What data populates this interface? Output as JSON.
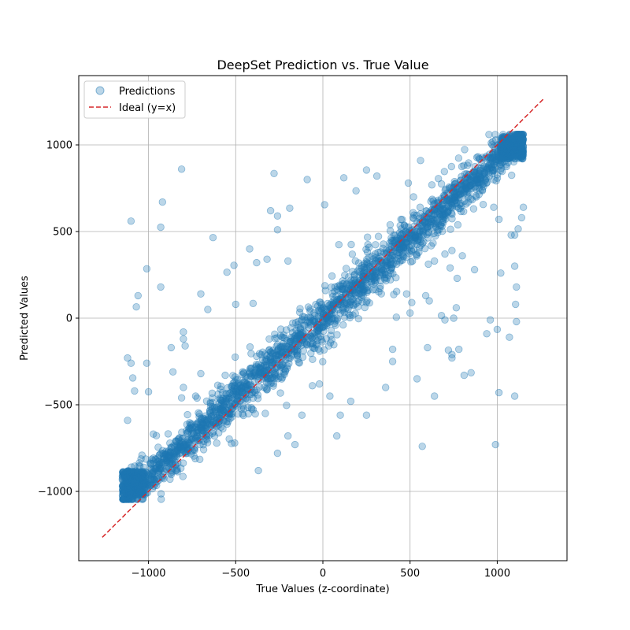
{
  "chart_data": {
    "type": "scatter",
    "title": "DeepSet Prediction vs. True Value",
    "xlabel": "True Values (z-coordinate)",
    "ylabel": "Predicted Values",
    "xlim": [
      -1400,
      1400
    ],
    "ylim": [
      -1400,
      1400
    ],
    "xticks": [
      -1000,
      -500,
      0,
      500,
      1000
    ],
    "yticks": [
      -1000,
      -500,
      0,
      500,
      1000
    ],
    "xtick_labels": [
      "−1000",
      "−500",
      "0",
      "500",
      "1000"
    ],
    "ytick_labels": [
      "−1000",
      "−500",
      "0",
      "500",
      "1000"
    ],
    "grid": true,
    "legend_position": "top-left",
    "series": [
      {
        "name": "Predictions",
        "kind": "scatter",
        "color": "#1f77b4",
        "alpha": 0.3,
        "main_band": {
          "x_range": [
            -1150,
            1150
          ],
          "spread_sd": 45
        },
        "outliers": [
          [
            -810,
            860
          ],
          [
            -1100,
            560
          ],
          [
            -920,
            670
          ],
          [
            -930,
            525
          ],
          [
            -1010,
            285
          ],
          [
            -1060,
            130
          ],
          [
            -1070,
            65
          ],
          [
            -930,
            180
          ],
          [
            -630,
            465
          ],
          [
            -280,
            835
          ],
          [
            -510,
            305
          ],
          [
            -550,
            265
          ],
          [
            -300,
            620
          ],
          [
            -260,
            590
          ],
          [
            -190,
            635
          ],
          [
            -260,
            510
          ],
          [
            -420,
            400
          ],
          [
            -380,
            320
          ],
          [
            -320,
            340
          ],
          [
            -200,
            330
          ],
          [
            -90,
            800
          ],
          [
            10,
            655
          ],
          [
            120,
            810
          ],
          [
            190,
            735
          ],
          [
            250,
            855
          ],
          [
            310,
            820
          ],
          [
            490,
            780
          ],
          [
            520,
            700
          ],
          [
            560,
            910
          ],
          [
            600,
            520
          ],
          [
            -700,
            140
          ],
          [
            -660,
            50
          ],
          [
            -500,
            80
          ],
          [
            -400,
            85
          ],
          [
            -1120,
            -230
          ],
          [
            -1100,
            -260
          ],
          [
            -1010,
            -260
          ],
          [
            -1090,
            -345
          ],
          [
            -1000,
            -425
          ],
          [
            -1080,
            -420
          ],
          [
            -860,
            -310
          ],
          [
            -800,
            -400
          ],
          [
            -810,
            -460
          ],
          [
            -730,
            -450
          ],
          [
            -790,
            -160
          ],
          [
            -800,
            -120
          ],
          [
            -800,
            -80
          ],
          [
            -870,
            -170
          ],
          [
            -1120,
            -590
          ],
          [
            -700,
            -320
          ],
          [
            -560,
            -330
          ],
          [
            -460,
            -430
          ],
          [
            -330,
            -550
          ],
          [
            -200,
            -680
          ],
          [
            -160,
            -730
          ],
          [
            -260,
            -780
          ],
          [
            -370,
            -880
          ],
          [
            -120,
            -560
          ],
          [
            -60,
            -390
          ],
          [
            -20,
            -380
          ],
          [
            40,
            -450
          ],
          [
            80,
            -680
          ],
          [
            100,
            -560
          ],
          [
            160,
            -480
          ],
          [
            250,
            -560
          ],
          [
            360,
            -400
          ],
          [
            400,
            -250
          ],
          [
            400,
            -180
          ],
          [
            540,
            -350
          ],
          [
            600,
            -170
          ],
          [
            640,
            -450
          ],
          [
            720,
            -185
          ],
          [
            740,
            -210
          ],
          [
            740,
            -230
          ],
          [
            780,
            -180
          ],
          [
            810,
            -330
          ],
          [
            850,
            -315
          ],
          [
            940,
            -90
          ],
          [
            960,
            -10
          ],
          [
            1000,
            -65
          ],
          [
            1100,
            -450
          ],
          [
            1010,
            -430
          ],
          [
            1070,
            -110
          ],
          [
            990,
            -730
          ],
          [
            1110,
            -20
          ],
          [
            1105,
            80
          ],
          [
            1110,
            180
          ],
          [
            1100,
            300
          ],
          [
            1020,
            260
          ],
          [
            1100,
            480
          ],
          [
            1080,
            480
          ],
          [
            1010,
            570
          ],
          [
            980,
            640
          ],
          [
            1140,
            580
          ],
          [
            1120,
            515
          ],
          [
            1150,
            640
          ],
          [
            480,
            140
          ],
          [
            510,
            90
          ],
          [
            590,
            130
          ],
          [
            610,
            100
          ],
          [
            500,
            30
          ],
          [
            570,
            -740
          ],
          [
            680,
            15
          ],
          [
            700,
            -10
          ],
          [
            750,
            0
          ],
          [
            765,
            60
          ],
          [
            640,
            330
          ],
          [
            700,
            370
          ],
          [
            740,
            390
          ],
          [
            800,
            360
          ],
          [
            870,
            280
          ],
          [
            730,
            290
          ],
          [
            770,
            230
          ]
        ]
      },
      {
        "name": "Ideal (y=x)",
        "kind": "line",
        "color": "#d62728",
        "dash": "dashed",
        "x": [
          -1265,
          1265
        ],
        "y": [
          -1265,
          1265
        ]
      }
    ]
  }
}
